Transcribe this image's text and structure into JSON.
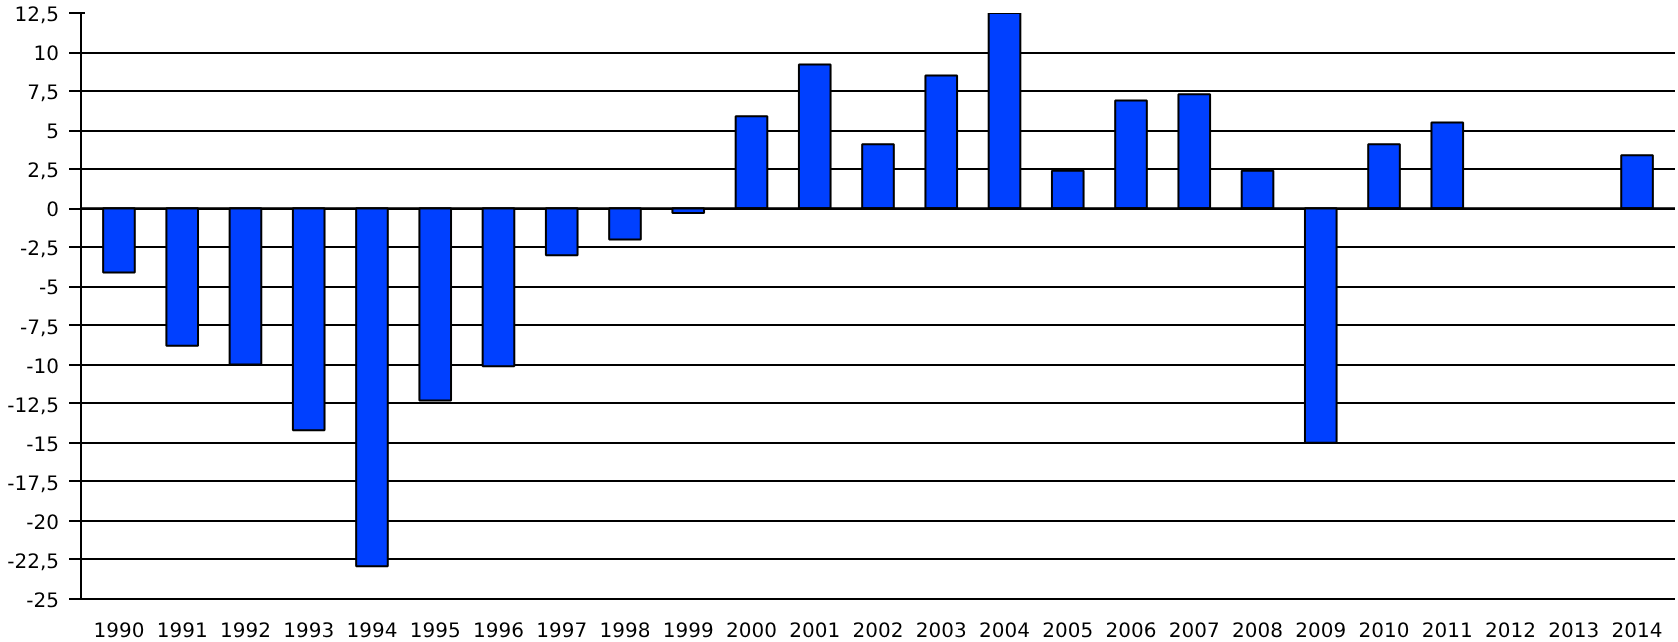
{
  "chart_data": {
    "type": "bar",
    "categories": [
      "1990",
      "1991",
      "1992",
      "1993",
      "1994",
      "1995",
      "1996",
      "1997",
      "1998",
      "1999",
      "2000",
      "2001",
      "2002",
      "2003",
      "2004",
      "2005",
      "2006",
      "2007",
      "2008",
      "2009",
      "2010",
      "2011",
      "2012",
      "2013",
      "2014"
    ],
    "values": [
      -4.1,
      -8.8,
      -10,
      -14.2,
      -22.9,
      -12.3,
      -10.1,
      -3,
      -2,
      -0.3,
      5.9,
      9.2,
      4.1,
      8.5,
      12.5,
      2.4,
      6.9,
      7.3,
      2.4,
      -15,
      4.1,
      5.5,
      null,
      null,
      3.4
    ],
    "color": "#0040ff",
    "ylim": [
      -25,
      12.5
    ],
    "yticks": [
      {
        "value": 12.5,
        "label": "12,5"
      },
      10,
      {
        "value": 7.5,
        "label": "7,5"
      },
      5,
      {
        "value": 2.5,
        "label": "2,5"
      },
      0,
      {
        "value": -2.5,
        "label": "-2,5"
      },
      -5,
      {
        "value": -7.5,
        "label": "-7,5"
      },
      -10,
      {
        "value": -12.5,
        "label": "-12,5"
      },
      -15,
      {
        "value": -17.5,
        "label": "-17,5"
      },
      -20,
      {
        "value": -22.5,
        "label": "-22,5"
      },
      -25
    ],
    "grid": "y"
  }
}
